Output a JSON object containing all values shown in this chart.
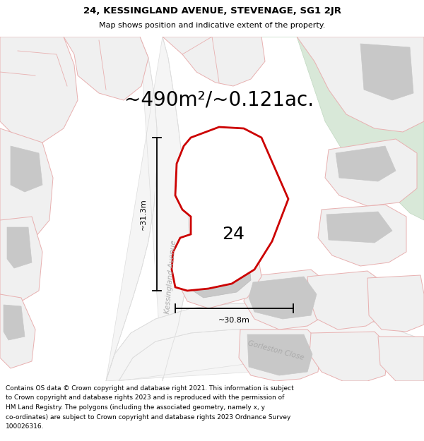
{
  "title_line1": "24, KESSINGLAND AVENUE, STEVENAGE, SG1 2JR",
  "title_line2": "Map shows position and indicative extent of the property.",
  "area_label": "~490m²/~0.121ac.",
  "property_number": "24",
  "dim_vertical": "~31.3m",
  "dim_horizontal": "~30.8m",
  "street_label1": "Kessingland Avenue",
  "street_label2": "Gorleston Close",
  "footer_lines": [
    "Contains OS data © Crown copyright and database right 2021. This information is subject",
    "to Crown copyright and database rights 2023 and is reproduced with the permission of",
    "HM Land Registry. The polygons (including the associated geometry, namely x, y",
    "co-ordinates) are subject to Crown copyright and database rights 2023 Ordnance Survey",
    "100026316."
  ],
  "map_bg": "#ffffff",
  "property_fill": "#ffffff",
  "property_edge": "#cc0000",
  "plot_line_color": "#e8b0b0",
  "plot_fill": "#e8e8e8",
  "plot_edge_dark": "#c8c8c8",
  "green_fill": "#d8e8d8",
  "green_edge": "#c0d8c0",
  "road_line_color": "#cccccc",
  "dim_line_color": "#000000",
  "street_text_color": "#aaaaaa",
  "title_fontsize": 9.5,
  "subtitle_fontsize": 8.0,
  "area_fontsize": 20,
  "label_fontsize": 18,
  "dim_fontsize": 8,
  "street_fontsize": 7.5,
  "footer_fontsize": 6.5
}
